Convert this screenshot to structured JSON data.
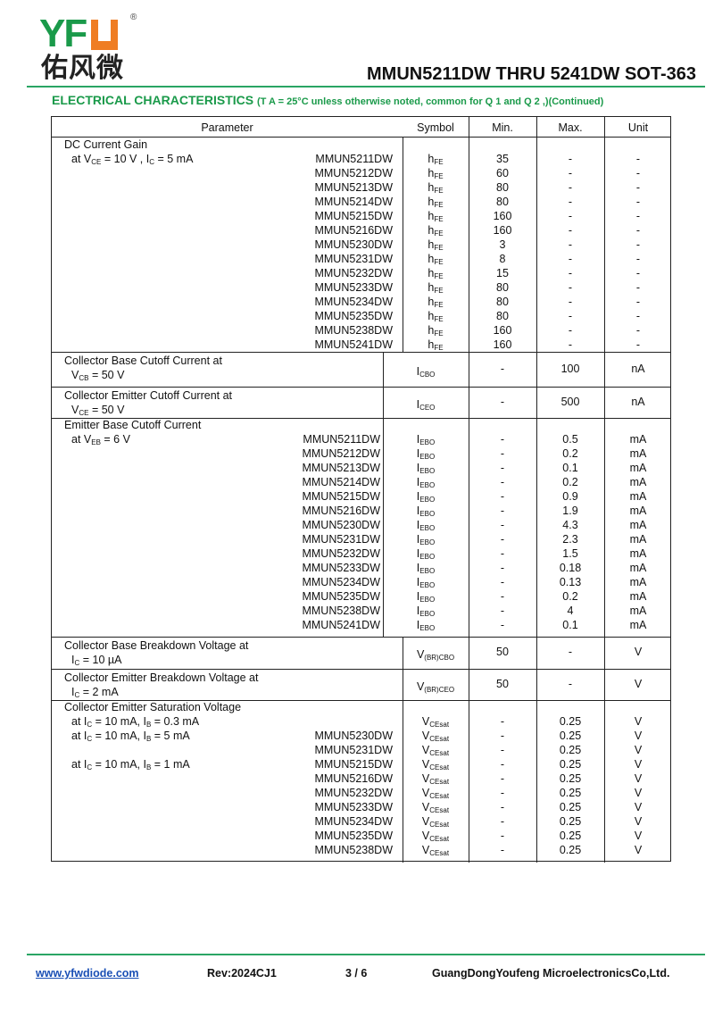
{
  "logo": {
    "text": "YFU",
    "cn": "佑风微",
    "registered": "®"
  },
  "header": {
    "title": "MMUN5211DW THRU 5241DW SOT-363"
  },
  "subtitle": {
    "main": "ELECTRICAL CHARACTERISTICS",
    "note": "(T A = 25°C unless otherwise noted, common for Q 1 and Q 2 ,)(Continued)"
  },
  "colors": {
    "brand_green": "#1a9a4a",
    "brand_orange": "#ef7d23"
  },
  "table": {
    "headers": [
      "Parameter",
      "Symbol",
      "Min.",
      "Max.",
      "Unit"
    ],
    "sections": [
      {
        "title": "DC Current Gain",
        "rows": [
          {
            "cond": "at V{CE} = 10 V , I{C} = 5 mA",
            "device": "MMUN5211DW",
            "symbol": "h{FE}",
            "min": "35",
            "max": "-",
            "unit": "-"
          },
          {
            "device": "MMUN5212DW",
            "symbol": "h{FE}",
            "min": "60",
            "max": "-",
            "unit": "-"
          },
          {
            "device": "MMUN5213DW",
            "symbol": "h{FE}",
            "min": "80",
            "max": "-",
            "unit": "-"
          },
          {
            "device": "MMUN5214DW",
            "symbol": "h{FE}",
            "min": "80",
            "max": "-",
            "unit": "-"
          },
          {
            "device": "MMUN5215DW",
            "symbol": "h{FE}",
            "min": "160",
            "max": "-",
            "unit": "-"
          },
          {
            "device": "MMUN5216DW",
            "symbol": "h{FE}",
            "min": "160",
            "max": "-",
            "unit": "-"
          },
          {
            "device": "MMUN5230DW",
            "symbol": "h{FE}",
            "min": "3",
            "max": "-",
            "unit": "-"
          },
          {
            "device": "MMUN5231DW",
            "symbol": "h{FE}",
            "min": "8",
            "max": "-",
            "unit": "-"
          },
          {
            "device": "MMUN5232DW",
            "symbol": "h{FE}",
            "min": "15",
            "max": "-",
            "unit": "-"
          },
          {
            "device": "MMUN5233DW",
            "symbol": "h{FE}",
            "min": "80",
            "max": "-",
            "unit": "-"
          },
          {
            "device": "MMUN5234DW",
            "symbol": "h{FE}",
            "min": "80",
            "max": "-",
            "unit": "-"
          },
          {
            "device": "MMUN5235DW",
            "symbol": "h{FE}",
            "min": "80",
            "max": "-",
            "unit": "-"
          },
          {
            "device": "MMUN5238DW",
            "symbol": "h{FE}",
            "min": "160",
            "max": "-",
            "unit": "-"
          },
          {
            "device": "MMUN5241DW",
            "symbol": "h{FE}",
            "min": "160",
            "max": "-",
            "unit": "-"
          }
        ]
      },
      {
        "title": "Collector Base Cutoff Current at",
        "cond2": "V{CB} = 50 V",
        "symbol": "I{CBO}",
        "min": "-",
        "max": "100",
        "unit": "nA"
      },
      {
        "title": "Collector Emitter Cutoff Current at",
        "cond2": "V{CE} = 50 V",
        "symbol": "I{CEO}",
        "min": "-",
        "max": "500",
        "unit": "nA"
      },
      {
        "title": "Emitter Base Cutoff Current",
        "rows": [
          {
            "cond": "at V{EB} = 6 V",
            "device": "MMUN5211DW",
            "symbol": "I{EBO}",
            "min": "-",
            "max": "0.5",
            "unit": "mA"
          },
          {
            "device": "MMUN5212DW",
            "symbol": "I{EBO}",
            "min": "-",
            "max": "0.2",
            "unit": "mA"
          },
          {
            "device": "MMUN5213DW",
            "symbol": "I{EBO}",
            "min": "-",
            "max": "0.1",
            "unit": "mA"
          },
          {
            "device": "MMUN5214DW",
            "symbol": "I{EBO}",
            "min": "-",
            "max": "0.2",
            "unit": "mA"
          },
          {
            "device": "MMUN5215DW",
            "symbol": "I{EBO}",
            "min": "-",
            "max": "0.9",
            "unit": "mA"
          },
          {
            "device": "MMUN5216DW",
            "symbol": "I{EBO}",
            "min": "-",
            "max": "1.9",
            "unit": "mA"
          },
          {
            "device": "MMUN5230DW",
            "symbol": "I{EBO}",
            "min": "-",
            "max": "4.3",
            "unit": "mA"
          },
          {
            "device": "MMUN5231DW",
            "symbol": "I{EBO}",
            "min": "-",
            "max": "2.3",
            "unit": "mA"
          },
          {
            "device": "MMUN5232DW",
            "symbol": "I{EBO}",
            "min": "-",
            "max": "1.5",
            "unit": "mA"
          },
          {
            "device": "MMUN5233DW",
            "symbol": "I{EBO}",
            "min": "-",
            "max": "0.18",
            "unit": "mA"
          },
          {
            "device": "MMUN5234DW",
            "symbol": "I{EBO}",
            "min": "-",
            "max": "0.13",
            "unit": "mA"
          },
          {
            "device": "MMUN5235DW",
            "symbol": "I{EBO}",
            "min": "-",
            "max": "0.2",
            "unit": "mA"
          },
          {
            "device": "MMUN5238DW",
            "symbol": "I{EBO}",
            "min": "-",
            "max": "4",
            "unit": "mA"
          },
          {
            "device": "MMUN5241DW",
            "symbol": "I{EBO}",
            "min": "-",
            "max": "0.1",
            "unit": "mA"
          }
        ]
      },
      {
        "title": "Collector Base Breakdown Voltage at",
        "cond2": "I{C} = 10 µA",
        "symbol": "V{(BR)CBO}",
        "min": "50",
        "max": "-",
        "unit": "V"
      },
      {
        "title": "Collector Emitter Breakdown Voltage at",
        "cond2": "I{C} = 2 mA",
        "symbol": "V{(BR)CEO}",
        "min": "50",
        "max": "-",
        "unit": "V"
      },
      {
        "title": "Collector Emitter Saturation Voltage",
        "rows": [
          {
            "cond": "at I{C} = 10 mA, I{B} = 0.3 mA",
            "device": "",
            "symbol": "V{CEsat}",
            "min": "-",
            "max": "0.25",
            "unit": "V"
          },
          {
            "cond": "at I{C} = 10 mA, I{B} = 5 mA",
            "device": "MMUN5230DW",
            "symbol": "V{CEsat}",
            "min": "-",
            "max": "0.25",
            "unit": "V"
          },
          {
            "device": "MMUN5231DW",
            "symbol": "V{CEsat}",
            "min": "-",
            "max": "0.25",
            "unit": "V"
          },
          {
            "cond": "at I{C} = 10 mA, I{B} = 1 mA",
            "device": "MMUN5215DW",
            "symbol": "V{CEsat}",
            "min": "-",
            "max": "0.25",
            "unit": "V"
          },
          {
            "device": "MMUN5216DW",
            "symbol": "V{CEsat}",
            "min": "-",
            "max": "0.25",
            "unit": "V"
          },
          {
            "device": "MMUN5232DW",
            "symbol": "V{CEsat}",
            "min": "-",
            "max": "0.25",
            "unit": "V"
          },
          {
            "device": "MMUN5233DW",
            "symbol": "V{CEsat}",
            "min": "-",
            "max": "0.25",
            "unit": "V"
          },
          {
            "device": "MMUN5234DW",
            "symbol": "V{CEsat}",
            "min": "-",
            "max": "0.25",
            "unit": "V"
          },
          {
            "device": "MMUN5235DW",
            "symbol": "V{CEsat}",
            "min": "-",
            "max": "0.25",
            "unit": "V"
          },
          {
            "device": "MMUN5238DW",
            "symbol": "V{CEsat}",
            "min": "-",
            "max": "0.25",
            "unit": "V"
          }
        ]
      }
    ]
  },
  "footer": {
    "website": "www.yfwdiode.com",
    "revision": "Rev:2024CJ1",
    "page": "3 / 6",
    "company": "GuangDongYoufeng MicroelectronicsCo,Ltd."
  }
}
